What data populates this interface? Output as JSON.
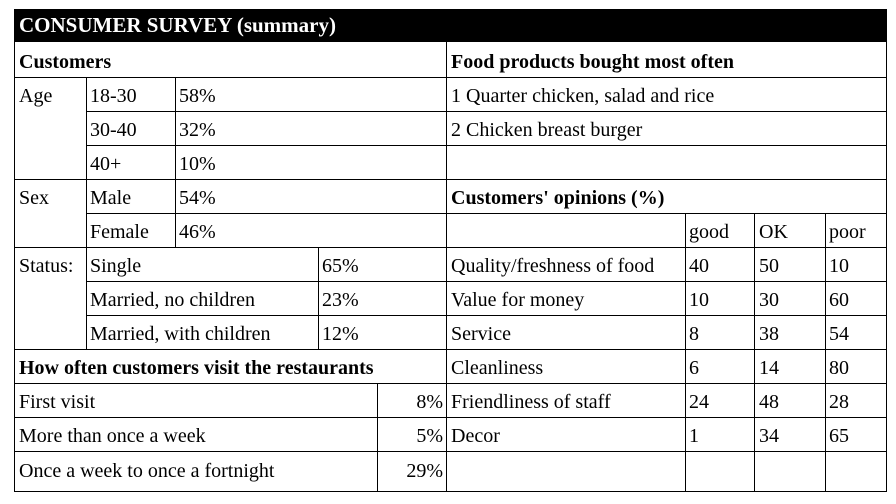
{
  "title": "CONSUMER SURVEY (summary)",
  "customers": {
    "heading": "Customers",
    "age": {
      "label": "Age",
      "rows": [
        {
          "range": "18-30",
          "pct": "58%"
        },
        {
          "range": "30-40",
          "pct": "32%"
        },
        {
          "range": "40+",
          "pct": "10%"
        }
      ]
    },
    "sex": {
      "label": "Sex",
      "rows": [
        {
          "value": "Male",
          "pct": "54%"
        },
        {
          "value": "Female",
          "pct": "46%"
        }
      ]
    },
    "status": {
      "label": "Status:",
      "rows": [
        {
          "value": "Single",
          "pct": "65%"
        },
        {
          "value": "Married, no children",
          "pct": "23%"
        },
        {
          "value": "Married, with children",
          "pct": "12%"
        }
      ]
    }
  },
  "visits": {
    "heading": "How often customers visit the restaurants",
    "rows": [
      {
        "label": "First visit",
        "pct": "8%"
      },
      {
        "label": "More than once a week",
        "pct": "5%"
      },
      {
        "label": "Once a week to once a fortnight",
        "pct": "29%"
      }
    ]
  },
  "food": {
    "heading": "Food products bought most often",
    "items": [
      "1 Quarter chicken, salad and rice",
      "2 Chicken breast burger"
    ]
  },
  "opinions": {
    "heading": "Customers' opinions (%)",
    "columns": [
      "good",
      "OK",
      "poor"
    ],
    "rows": [
      {
        "label": "Quality/freshness of food",
        "good": "40",
        "ok": "50",
        "poor": "10"
      },
      {
        "label": "Value for money",
        "good": "10",
        "ok": "30",
        "poor": "60"
      },
      {
        "label": "Service",
        "good": "8",
        "ok": "38",
        "poor": "54"
      },
      {
        "label": "Cleanliness",
        "good": "6",
        "ok": "14",
        "poor": "80"
      },
      {
        "label": "Friendliness of staff",
        "good": "24",
        "ok": "48",
        "poor": "28"
      },
      {
        "label": "Decor",
        "good": "1",
        "ok": "34",
        "poor": "65"
      }
    ]
  }
}
